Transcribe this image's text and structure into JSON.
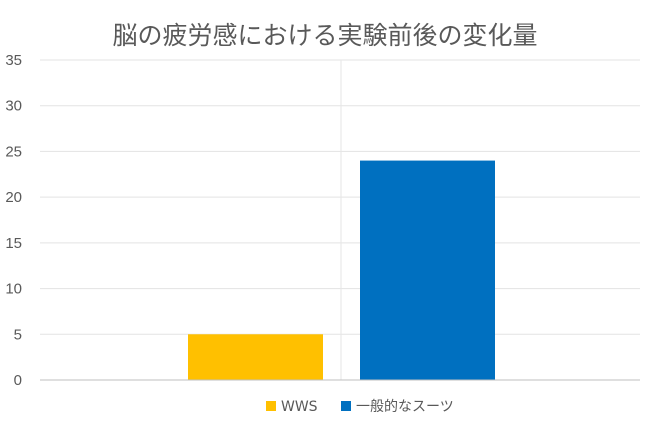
{
  "chart_data": {
    "type": "bar",
    "title": "脳の疲労感における実験前後の変化量",
    "xlabel": "",
    "ylabel": "",
    "ylim": [
      0,
      35
    ],
    "yticks": [
      "0",
      "5",
      "10",
      "15",
      "20",
      "25",
      "30",
      "35"
    ],
    "grid": true,
    "legend_position": "bottom",
    "series": [
      {
        "name": "WWS",
        "color": "#FFC000",
        "value": 5
      },
      {
        "name": "一般的なスーツ",
        "color": "#0070C0",
        "value": 24
      }
    ]
  }
}
